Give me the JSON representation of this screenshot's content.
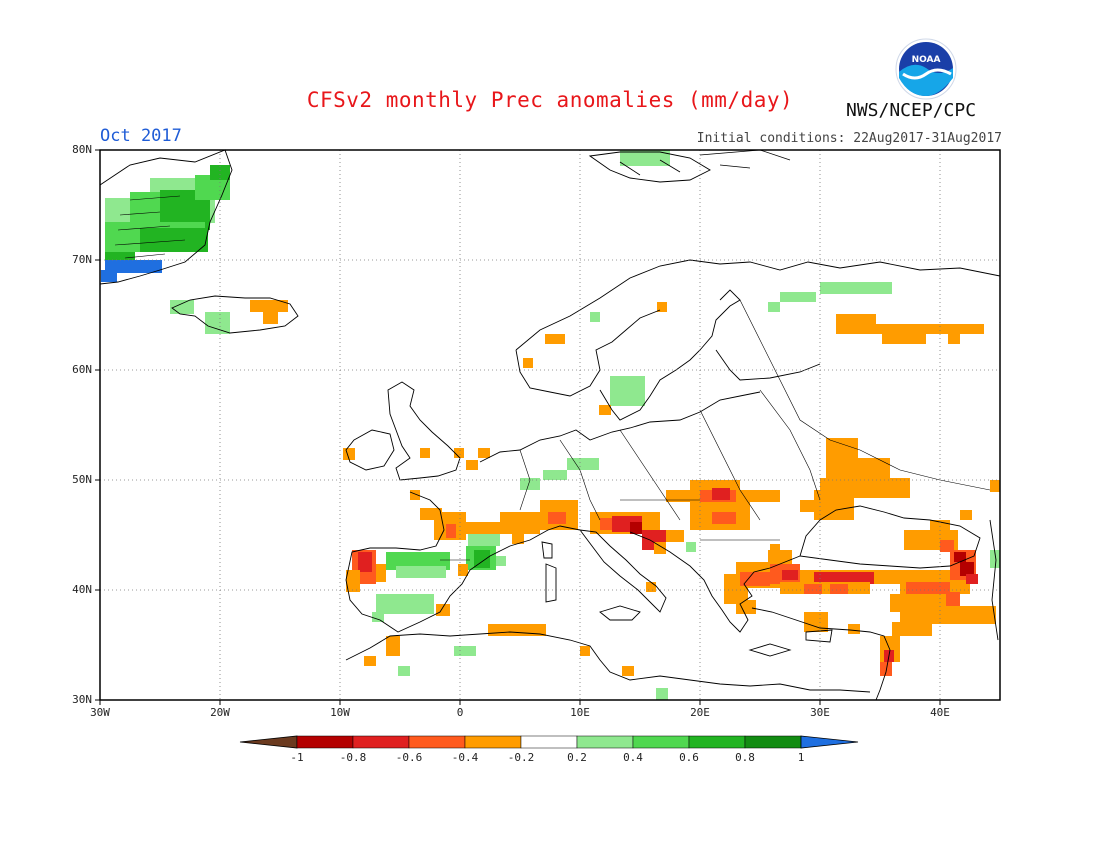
{
  "header": {
    "title": "CFSv2 monthly Prec anomalies (mm/day)",
    "month": "Oct 2017",
    "initial_conditions": "Initial conditions: 22Aug2017-31Aug2017",
    "agency": "NWS/NCEP/CPC",
    "logo_text": "NOAA"
  },
  "map": {
    "latitude_labels": [
      "80N",
      "70N",
      "60N",
      "50N",
      "40N",
      "30N"
    ],
    "longitude_labels": [
      "30W",
      "20W",
      "10W",
      "0",
      "10E",
      "20E",
      "30E",
      "40E"
    ],
    "extent": {
      "lon": [
        -30,
        45
      ],
      "lat": [
        30,
        80
      ]
    },
    "grid": true,
    "projection": "cylindrical equidistant"
  },
  "colorbar": {
    "labels": [
      "-1",
      "-0.8",
      "-0.6",
      "-0.4",
      "-0.2",
      "0.2",
      "0.4",
      "0.6",
      "0.8",
      "1"
    ],
    "colors": {
      "below_min": "#6b3a1f",
      "-1_-0.8": "#b40000",
      "-0.8_-0.6": "#e02020",
      "-0.6_-0.4": "#ff5a1e",
      "-0.4_-0.2": "#ff9c00",
      "-0.2_0.2": "#ffffff",
      "0.2_0.4": "#8fe88f",
      "0.4_0.6": "#50d850",
      "0.6_0.8": "#22b422",
      "0.8_1": "#128c12",
      "above_max": "#1f6fe0"
    }
  },
  "anomaly_regions": [
    {
      "name": "Greenland east coast",
      "lon": [
        -30,
        -22
      ],
      "lat": [
        68,
        77
      ],
      "category": "0.4_0.8 (wet)"
    },
    {
      "name": "Greenland south tip",
      "lon": [
        -30,
        -25
      ],
      "lat": [
        68,
        70
      ],
      "category": ">1 (wet)"
    },
    {
      "name": "Iceland",
      "lon": [
        -24,
        -14
      ],
      "lat": [
        64,
        66
      ],
      "category": "mixed"
    },
    {
      "name": "Iberian Peninsula",
      "lon": [
        -9,
        -1
      ],
      "lat": [
        38,
        43
      ],
      "category": "0.2_0.6 (wet) / -0.8 (dry west coast)"
    },
    {
      "name": "France / Alps",
      "lon": [
        -2,
        10
      ],
      "lat": [
        43,
        48
      ],
      "category": "-0.4 (dry)"
    },
    {
      "name": "Northern Italy / Adriatic",
      "lon": [
        10,
        17
      ],
      "lat": [
        42,
        46
      ],
      "category": "-0.6 to -0.8 (dry)"
    },
    {
      "name": "Carpathians / Hungary",
      "lon": [
        18,
        26
      ],
      "lat": [
        45,
        49
      ],
      "category": "-0.4 to -0.6 (dry)"
    },
    {
      "name": "Western Russia / Ukraine",
      "lon": [
        29,
        36
      ],
      "lat": [
        47,
        53
      ],
      "category": "-0.4 (dry)"
    },
    {
      "name": "Turkey",
      "lon": [
        22,
        43
      ],
      "lat": [
        39,
        42
      ],
      "category": "-0.4 to -1 (dry)"
    },
    {
      "name": "Caucasus",
      "lon": [
        37,
        43
      ],
      "lat": [
        40,
        45
      ],
      "category": "-0.6 to -1 (dry)"
    },
    {
      "name": "Northwest Russia",
      "lon": [
        31,
        44
      ],
      "lat": [
        63,
        65
      ],
      "category": "-0.4 (dry)"
    },
    {
      "name": "Kola / White Sea",
      "lon": [
        28,
        36
      ],
      "lat": [
        66,
        67
      ],
      "category": "0.2 (wet)"
    },
    {
      "name": "Sweden",
      "lon": [
        13,
        15
      ],
      "lat": [
        58,
        60
      ],
      "category": "0.2 (wet)"
    },
    {
      "name": "Svalbard",
      "lon": [
        10,
        20
      ],
      "lat": [
        78,
        80
      ],
      "category": "0.2 (wet)"
    }
  ]
}
